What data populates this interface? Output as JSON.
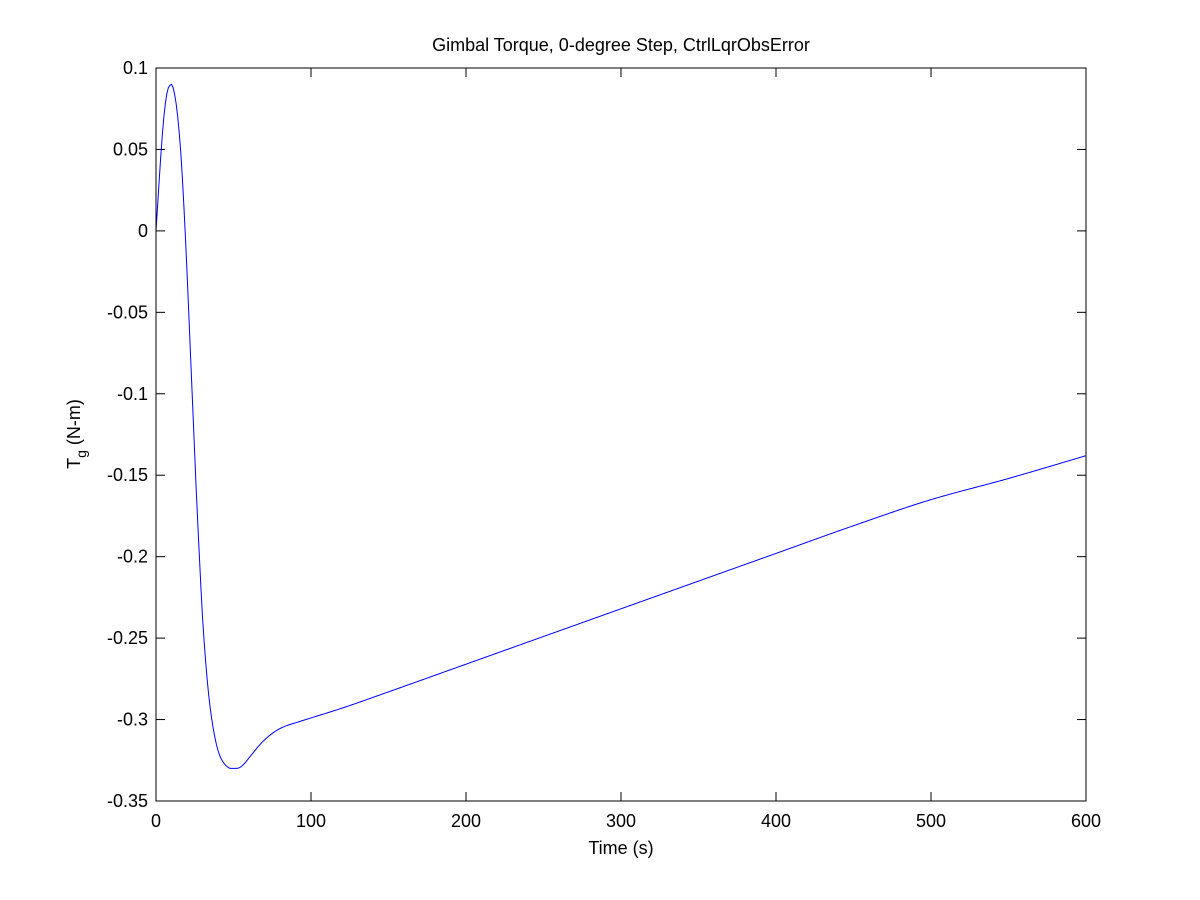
{
  "chart_data": {
    "type": "line",
    "title": "Gimbal Torque, 0-degree Step, CtrlLqrObsError",
    "xlabel": "Time (s)",
    "ylabel_main": "T",
    "ylabel_sub": "g",
    "ylabel_units": " (N-m)",
    "xlim": [
      0,
      600
    ],
    "ylim": [
      -0.35,
      0.1
    ],
    "xticks": [
      0,
      100,
      200,
      300,
      400,
      500,
      600
    ],
    "yticks": [
      0.1,
      0.05,
      0,
      -0.05,
      -0.1,
      -0.15,
      -0.2,
      -0.25,
      -0.3,
      -0.35
    ],
    "xtick_labels": [
      "0",
      "100",
      "200",
      "300",
      "400",
      "500",
      "600"
    ],
    "ytick_labels": [
      "0.1",
      "0.05",
      "0",
      "-0.05",
      "-0.1",
      "-0.15",
      "-0.2",
      "-0.25",
      "-0.3",
      "-0.35"
    ],
    "grid": false,
    "line_color": "#0000ff",
    "series": [
      {
        "x": [
          0,
          2,
          4,
          6,
          8,
          10,
          12,
          14,
          16,
          18,
          20,
          22,
          24,
          26,
          28,
          30,
          32,
          34,
          36,
          38,
          40,
          42,
          44,
          46,
          48,
          50,
          52,
          54,
          56,
          58,
          60,
          63,
          66,
          70,
          75,
          80,
          85,
          90,
          95,
          100,
          120,
          150,
          200,
          250,
          300,
          350,
          400,
          450,
          500,
          550,
          600
        ],
        "y": [
          0,
          0.03,
          0.058,
          0.078,
          0.088,
          0.09,
          0.084,
          0.07,
          0.048,
          0.015,
          -0.025,
          -0.07,
          -0.115,
          -0.16,
          -0.2,
          -0.237,
          -0.264,
          -0.285,
          -0.3,
          -0.311,
          -0.319,
          -0.324,
          -0.327,
          -0.329,
          -0.33,
          -0.33,
          -0.33,
          -0.3295,
          -0.328,
          -0.326,
          -0.3235,
          -0.32,
          -0.3165,
          -0.3125,
          -0.3085,
          -0.3055,
          -0.3035,
          -0.302,
          -0.3005,
          -0.299,
          -0.293,
          -0.283,
          -0.266,
          -0.249,
          -0.232,
          -0.215,
          -0.198,
          -0.181,
          -0.165,
          -0.152,
          -0.138
        ]
      }
    ]
  }
}
